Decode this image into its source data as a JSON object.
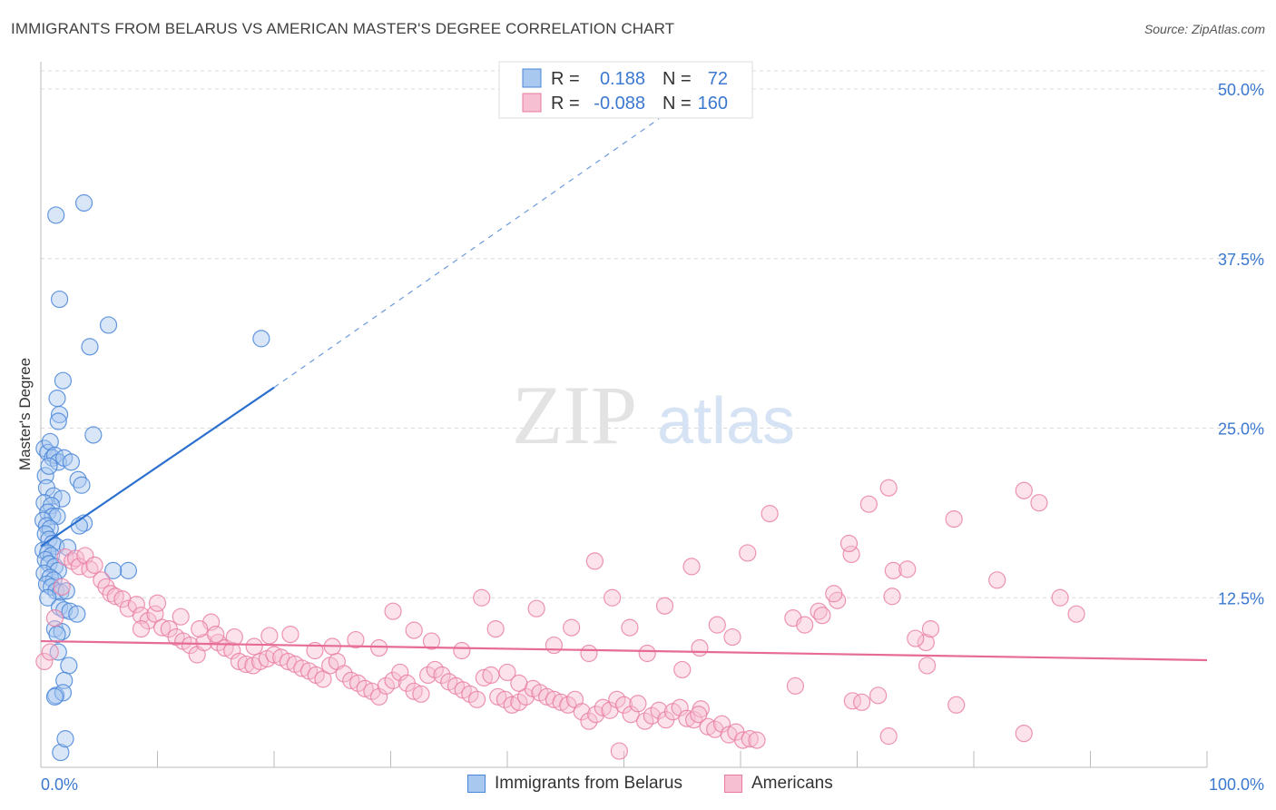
{
  "title": "IMMIGRANTS FROM BELARUS VS AMERICAN MASTER'S DEGREE CORRELATION CHART",
  "source": "Source: ZipAtlas.com",
  "colors": {
    "blue": "#4a86d8",
    "blue_fill": "#a9c8f0",
    "blue_line": "#2b6fcf",
    "pink": "#e87aa0",
    "pink_fill": "#f6bfd2",
    "pink_line": "#e66b96",
    "axis_label": "#3b78d0",
    "grid": "#d9d9d9"
  },
  "legend": {
    "r_label": "R =",
    "n_label": "N =",
    "rows": [
      {
        "series": "Immigrants from Belarus",
        "r": "0.188",
        "n": "72"
      },
      {
        "series": "Americans",
        "r": "-0.088",
        "n": "160"
      }
    ]
  },
  "watermark": {
    "zip": "ZIP",
    "atlas": "atlas"
  },
  "chart_data": {
    "type": "scatter",
    "title": "IMMIGRANTS FROM BELARUS VS AMERICAN MASTER'S DEGREE CORRELATION CHART",
    "xlabel": "",
    "ylabel": "Master's Degree",
    "xlim": [
      0,
      100
    ],
    "ylim": [
      0,
      50
    ],
    "x_tick_labels": [
      "0.0%",
      "100.0%"
    ],
    "y_tick_labels": [
      "12.5%",
      "25.0%",
      "37.5%",
      "50.0%"
    ],
    "y_ticks": [
      12.5,
      25.0,
      37.5,
      50.0
    ],
    "grid": true,
    "legend_position": "top-center",
    "series": [
      {
        "name": "Immigrants from Belarus",
        "color": "#4a86d8",
        "trend": {
          "x": [
            0,
            20
          ],
          "y": [
            16.3,
            28.0
          ],
          "dashed_to": [
            53,
            47.8
          ]
        },
        "points": [
          [
            0.3,
            23.5
          ],
          [
            0.6,
            23.2
          ],
          [
            0.8,
            24.0
          ],
          [
            1.0,
            22.8
          ],
          [
            1.2,
            23.0
          ],
          [
            1.5,
            22.5
          ],
          [
            2.0,
            22.8
          ],
          [
            0.4,
            21.5
          ],
          [
            0.7,
            22.2
          ],
          [
            0.5,
            20.6
          ],
          [
            1.1,
            20.0
          ],
          [
            1.8,
            19.8
          ],
          [
            0.3,
            19.5
          ],
          [
            0.9,
            19.3
          ],
          [
            0.6,
            18.8
          ],
          [
            1.0,
            18.5
          ],
          [
            1.4,
            18.5
          ],
          [
            0.2,
            18.2
          ],
          [
            0.5,
            17.8
          ],
          [
            0.8,
            17.6
          ],
          [
            0.4,
            17.2
          ],
          [
            0.7,
            16.8
          ],
          [
            1.0,
            16.5
          ],
          [
            1.3,
            16.3
          ],
          [
            0.2,
            16.0
          ],
          [
            0.6,
            15.8
          ],
          [
            0.9,
            15.6
          ],
          [
            0.4,
            15.3
          ],
          [
            0.7,
            15.0
          ],
          [
            1.2,
            14.8
          ],
          [
            1.5,
            14.5
          ],
          [
            0.3,
            14.3
          ],
          [
            0.8,
            14.0
          ],
          [
            1.1,
            13.8
          ],
          [
            0.5,
            13.5
          ],
          [
            0.9,
            13.3
          ],
          [
            1.3,
            13.0
          ],
          [
            1.7,
            12.9
          ],
          [
            2.2,
            13.0
          ],
          [
            0.6,
            12.5
          ],
          [
            1.6,
            11.8
          ],
          [
            2.0,
            11.6
          ],
          [
            2.5,
            11.5
          ],
          [
            3.1,
            11.3
          ],
          [
            1.2,
            10.2
          ],
          [
            1.8,
            10.0
          ],
          [
            1.4,
            9.8
          ],
          [
            1.5,
            8.5
          ],
          [
            2.4,
            7.5
          ],
          [
            2.0,
            6.4
          ],
          [
            1.3,
            5.3
          ],
          [
            1.9,
            5.5
          ],
          [
            1.2,
            5.2
          ],
          [
            1.7,
            1.1
          ],
          [
            2.1,
            2.1
          ],
          [
            1.3,
            40.7
          ],
          [
            3.7,
            41.6
          ],
          [
            1.6,
            34.5
          ],
          [
            5.8,
            32.6
          ],
          [
            4.2,
            31.0
          ],
          [
            1.9,
            28.5
          ],
          [
            1.4,
            27.2
          ],
          [
            1.6,
            26.0
          ],
          [
            1.5,
            25.5
          ],
          [
            4.5,
            24.5
          ],
          [
            3.2,
            21.2
          ],
          [
            3.5,
            20.8
          ],
          [
            2.6,
            22.5
          ],
          [
            3.7,
            18.0
          ],
          [
            3.3,
            17.8
          ],
          [
            7.5,
            14.5
          ],
          [
            6.2,
            14.5
          ],
          [
            2.3,
            16.2
          ],
          [
            18.9,
            31.6
          ]
        ]
      },
      {
        "name": "Americans",
        "color": "#e87aa0",
        "trend": {
          "x": [
            0,
            100
          ],
          "y": [
            9.3,
            7.9
          ]
        },
        "points": [
          [
            0.3,
            7.8
          ],
          [
            0.8,
            8.5
          ],
          [
            1.2,
            11.0
          ],
          [
            1.8,
            13.3
          ],
          [
            2.1,
            15.5
          ],
          [
            2.7,
            15.2
          ],
          [
            3.0,
            15.4
          ],
          [
            3.3,
            14.8
          ],
          [
            3.8,
            15.6
          ],
          [
            4.2,
            14.6
          ],
          [
            4.6,
            14.9
          ],
          [
            5.2,
            13.8
          ],
          [
            5.6,
            13.3
          ],
          [
            6.0,
            12.8
          ],
          [
            6.4,
            12.6
          ],
          [
            7.0,
            12.4
          ],
          [
            7.5,
            11.7
          ],
          [
            8.2,
            12.0
          ],
          [
            8.6,
            11.2
          ],
          [
            9.2,
            10.8
          ],
          [
            9.8,
            11.3
          ],
          [
            10.4,
            10.3
          ],
          [
            11.0,
            10.2
          ],
          [
            11.6,
            9.6
          ],
          [
            12.2,
            9.3
          ],
          [
            12.8,
            9.0
          ],
          [
            13.4,
            8.3
          ],
          [
            14.0,
            9.2
          ],
          [
            14.6,
            10.7
          ],
          [
            15.2,
            9.2
          ],
          [
            15.8,
            8.8
          ],
          [
            16.4,
            8.6
          ],
          [
            17.0,
            7.8
          ],
          [
            17.6,
            7.6
          ],
          [
            18.2,
            7.5
          ],
          [
            18.8,
            7.8
          ],
          [
            19.4,
            8.0
          ],
          [
            20.0,
            8.3
          ],
          [
            20.6,
            8.1
          ],
          [
            21.2,
            7.8
          ],
          [
            21.8,
            7.6
          ],
          [
            22.4,
            7.3
          ],
          [
            23.0,
            7.1
          ],
          [
            23.6,
            6.8
          ],
          [
            24.2,
            6.5
          ],
          [
            24.8,
            7.5
          ],
          [
            25.4,
            7.8
          ],
          [
            26.0,
            6.9
          ],
          [
            26.6,
            6.4
          ],
          [
            27.2,
            6.2
          ],
          [
            27.8,
            5.8
          ],
          [
            28.4,
            5.6
          ],
          [
            29.0,
            5.2
          ],
          [
            29.6,
            6.0
          ],
          [
            30.2,
            6.4
          ],
          [
            30.8,
            7.0
          ],
          [
            31.4,
            6.2
          ],
          [
            32.0,
            5.6
          ],
          [
            32.6,
            5.4
          ],
          [
            33.2,
            6.8
          ],
          [
            33.8,
            7.2
          ],
          [
            34.4,
            6.8
          ],
          [
            35.0,
            6.3
          ],
          [
            35.6,
            6.0
          ],
          [
            36.2,
            5.7
          ],
          [
            36.8,
            5.4
          ],
          [
            37.4,
            5.0
          ],
          [
            38.0,
            6.6
          ],
          [
            38.6,
            6.8
          ],
          [
            39.2,
            5.2
          ],
          [
            39.8,
            5.0
          ],
          [
            40.4,
            4.6
          ],
          [
            41.0,
            4.8
          ],
          [
            41.6,
            5.2
          ],
          [
            42.2,
            5.8
          ],
          [
            42.8,
            5.5
          ],
          [
            43.4,
            5.2
          ],
          [
            44.0,
            5.0
          ],
          [
            44.6,
            4.8
          ],
          [
            45.2,
            4.6
          ],
          [
            45.8,
            5.0
          ],
          [
            46.4,
            4.1
          ],
          [
            47.0,
            3.4
          ],
          [
            47.6,
            3.9
          ],
          [
            48.2,
            4.4
          ],
          [
            48.8,
            4.2
          ],
          [
            49.4,
            5.0
          ],
          [
            50.0,
            4.6
          ],
          [
            50.6,
            3.9
          ],
          [
            51.2,
            4.7
          ],
          [
            51.8,
            3.4
          ],
          [
            52.4,
            3.8
          ],
          [
            53.0,
            4.2
          ],
          [
            53.6,
            3.5
          ],
          [
            54.2,
            4.1
          ],
          [
            54.8,
            4.4
          ],
          [
            55.4,
            3.6
          ],
          [
            56.0,
            3.5
          ],
          [
            56.6,
            4.3
          ],
          [
            57.2,
            3.0
          ],
          [
            57.8,
            2.8
          ],
          [
            58.4,
            3.2
          ],
          [
            59.0,
            2.4
          ],
          [
            59.6,
            2.6
          ],
          [
            60.2,
            2.0
          ],
          [
            60.8,
            2.1
          ],
          [
            61.4,
            2.0
          ],
          [
            8.6,
            10.2
          ],
          [
            10.0,
            12.1
          ],
          [
            12.0,
            11.1
          ],
          [
            13.6,
            10.2
          ],
          [
            15.0,
            9.8
          ],
          [
            16.6,
            9.6
          ],
          [
            18.3,
            8.9
          ],
          [
            19.6,
            9.7
          ],
          [
            21.4,
            9.8
          ],
          [
            23.5,
            8.6
          ],
          [
            25.0,
            8.9
          ],
          [
            27.0,
            9.4
          ],
          [
            29.0,
            8.8
          ],
          [
            30.2,
            11.5
          ],
          [
            32.0,
            10.1
          ],
          [
            33.5,
            9.3
          ],
          [
            36.1,
            8.6
          ],
          [
            37.8,
            12.5
          ],
          [
            39.0,
            10.2
          ],
          [
            40.0,
            7.0
          ],
          [
            41.0,
            6.2
          ],
          [
            42.5,
            11.7
          ],
          [
            44.0,
            9.0
          ],
          [
            45.5,
            10.3
          ],
          [
            47.0,
            8.4
          ],
          [
            47.5,
            15.2
          ],
          [
            49.0,
            12.5
          ],
          [
            50.5,
            10.3
          ],
          [
            52.0,
            8.4
          ],
          [
            53.5,
            11.9
          ],
          [
            55.0,
            7.2
          ],
          [
            56.5,
            8.8
          ],
          [
            58.0,
            10.5
          ],
          [
            59.3,
            9.6
          ],
          [
            60.6,
            15.8
          ],
          [
            62.5,
            18.7
          ],
          [
            64.5,
            11.0
          ],
          [
            65.5,
            10.5
          ],
          [
            66.7,
            11.5
          ],
          [
            67.0,
            11.2
          ],
          [
            68.3,
            12.3
          ],
          [
            69.5,
            15.7
          ],
          [
            71.0,
            19.4
          ],
          [
            72.7,
            20.6
          ],
          [
            73.1,
            14.5
          ],
          [
            74.3,
            14.6
          ],
          [
            75.9,
            9.2
          ],
          [
            76.3,
            10.2
          ],
          [
            78.3,
            18.3
          ],
          [
            82.0,
            13.8
          ],
          [
            84.3,
            20.4
          ],
          [
            85.6,
            19.5
          ],
          [
            87.4,
            12.5
          ],
          [
            88.8,
            11.3
          ],
          [
            64.7,
            6.0
          ],
          [
            69.6,
            4.9
          ],
          [
            71.8,
            5.3
          ],
          [
            72.7,
            2.3
          ],
          [
            78.5,
            4.6
          ],
          [
            84.3,
            2.5
          ],
          [
            49.6,
            1.2
          ],
          [
            70.4,
            4.8
          ],
          [
            73.0,
            12.6
          ],
          [
            75.0,
            9.5
          ],
          [
            68.0,
            12.8
          ],
          [
            69.3,
            16.5
          ],
          [
            76.0,
            7.5
          ],
          [
            55.8,
            14.8
          ],
          [
            56.4,
            3.9
          ]
        ]
      }
    ]
  },
  "bottom_legend": {
    "items": [
      "Immigrants from Belarus",
      "Americans"
    ]
  }
}
